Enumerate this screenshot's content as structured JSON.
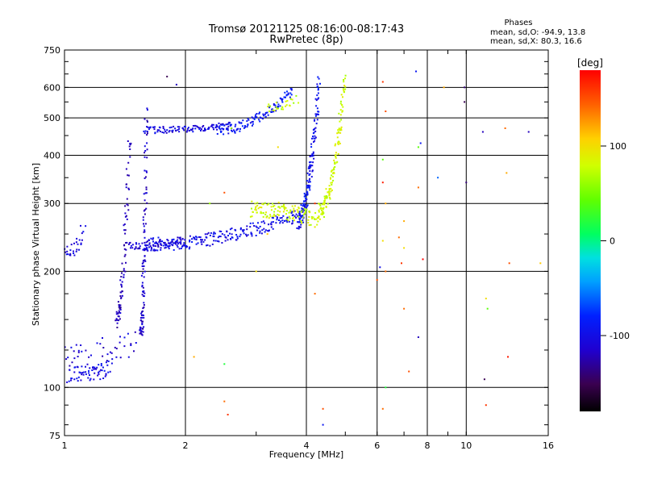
{
  "chart_data": {
    "type": "scatter",
    "title": "Tromsø 20121125 08:16:00-08:17:43",
    "subtitle": "RwPretec (8p)",
    "xlabel": "Frequency [MHz]",
    "ylabel": "Stationary phase Virtual Height [km]",
    "x_scale": "log",
    "y_scale": "log",
    "xlim": [
      1,
      16
    ],
    "ylim": [
      75,
      750
    ],
    "x_ticks": [
      1,
      2,
      4,
      6,
      8,
      10,
      16
    ],
    "x_ticklabels": [
      "1",
      "2",
      "4",
      "6",
      "8",
      "10",
      "16"
    ],
    "y_ticks": [
      75,
      100,
      200,
      300,
      400,
      500,
      600,
      750
    ],
    "y_ticklabels": [
      "75",
      "100",
      "200",
      "300",
      "400",
      "500",
      "600",
      "750"
    ],
    "grid": true,
    "phases": {
      "heading": "Phases",
      "o_line": "mean, sd,O: -94.9, 13.8",
      "x_line": "mean, sd,X:  80.3, 16.6"
    },
    "colorbar": {
      "label": "[deg]",
      "range": [
        -180,
        180
      ],
      "ticks": [
        100,
        0,
        -100
      ],
      "ticklabels": [
        "100",
        "0",
        "-100"
      ]
    },
    "series": [
      {
        "id": "lowE",
        "traces": [
          {
            "f0": 1.02,
            "f1": 1.3,
            "h0": 108,
            "h1": 112,
            "n": 60,
            "spread": 0.05,
            "phase": -100
          },
          {
            "f0": 1.0,
            "f1": 1.5,
            "h0": 118,
            "h1": 135,
            "n": 50,
            "spread": 0.1,
            "phase": -110
          },
          {
            "f0": 1.0,
            "f1": 1.12,
            "h0": 220,
            "h1": 260,
            "n": 30,
            "spread": 0.05,
            "phase": -105
          }
        ]
      },
      {
        "id": "F1",
        "traces": [
          {
            "f0": 1.55,
            "f1": 1.6,
            "h0": 140,
            "h1": 520,
            "n": 110,
            "spread": 0.05,
            "phase": -115
          },
          {
            "f0": 1.35,
            "f1": 1.45,
            "h0": 150,
            "h1": 450,
            "n": 90,
            "spread": 0.05,
            "phase": -120
          },
          {
            "f0": 1.58,
            "f1": 2.6,
            "h0": 465,
            "h1": 478,
            "n": 110,
            "spread": 0.02,
            "phase": -105
          },
          {
            "f0": 1.45,
            "f1": 2.0,
            "h0": 232,
            "h1": 240,
            "n": 80,
            "spread": 0.03,
            "phase": -110
          }
        ]
      },
      {
        "id": "Fo",
        "traces": [
          {
            "f0": 1.6,
            "f1": 3.8,
            "h0": 235,
            "h1": 280,
            "n": 220,
            "spread": 0.04,
            "phase": -100
          },
          {
            "f0": 2.4,
            "f1": 3.7,
            "h0": 465,
            "h1": 590,
            "n": 120,
            "spread": 0.03,
            "phase": -90
          },
          {
            "f0": 3.8,
            "f1": 4.3,
            "h0": 270,
            "h1": 620,
            "n": 160,
            "spread": 0.05,
            "phase": -95
          }
        ]
      },
      {
        "id": "Fx",
        "traces": [
          {
            "f0": 2.9,
            "f1": 4.3,
            "h0": 290,
            "h1": 272,
            "n": 120,
            "spread": 0.05,
            "phase": 80
          },
          {
            "f0": 4.3,
            "f1": 5.0,
            "h0": 285,
            "h1": 640,
            "n": 140,
            "spread": 0.05,
            "phase": 80
          },
          {
            "f0": 3.2,
            "f1": 3.8,
            "h0": 530,
            "h1": 560,
            "n": 25,
            "spread": 0.03,
            "phase": 75
          }
        ]
      },
      {
        "id": "noise",
        "points": [
          [
            1.8,
            640,
            -150
          ],
          [
            1.9,
            610,
            -120
          ],
          [
            2.5,
            320,
            150
          ],
          [
            2.3,
            300,
            60
          ],
          [
            2.1,
            120,
            120
          ],
          [
            2.5,
            115,
            20
          ],
          [
            2.5,
            92,
            140
          ],
          [
            2.55,
            85,
            160
          ],
          [
            4.4,
            88,
            150
          ],
          [
            4.4,
            80,
            -90
          ],
          [
            6.2,
            620,
            160
          ],
          [
            6.3,
            520,
            150
          ],
          [
            6.2,
            390,
            40
          ],
          [
            6.2,
            340,
            170
          ],
          [
            6.3,
            300,
            120
          ],
          [
            6.2,
            240,
            100
          ],
          [
            6.1,
            205,
            -100
          ],
          [
            6.3,
            200,
            140
          ],
          [
            6.0,
            190,
            150
          ],
          [
            6.3,
            100,
            20
          ],
          [
            6.2,
            88,
            140
          ],
          [
            7.0,
            270,
            120
          ],
          [
            6.8,
            245,
            140
          ],
          [
            7.0,
            230,
            100
          ],
          [
            6.9,
            210,
            160
          ],
          [
            7.0,
            160,
            140
          ],
          [
            7.2,
            110,
            150
          ],
          [
            7.5,
            660,
            -90
          ],
          [
            7.6,
            420,
            40
          ],
          [
            7.7,
            430,
            -90
          ],
          [
            7.6,
            330,
            140
          ],
          [
            7.8,
            215,
            180
          ],
          [
            7.6,
            135,
            -120
          ],
          [
            8.5,
            350,
            -60
          ],
          [
            8.8,
            600,
            120
          ],
          [
            9.9,
            600,
            -140
          ],
          [
            9.9,
            550,
            -150
          ],
          [
            10.0,
            340,
            -140
          ],
          [
            11.0,
            460,
            -120
          ],
          [
            11.2,
            170,
            100
          ],
          [
            11.3,
            160,
            40
          ],
          [
            11.1,
            105,
            -150
          ],
          [
            11.2,
            90,
            160
          ],
          [
            12.5,
            470,
            140
          ],
          [
            12.6,
            360,
            120
          ],
          [
            12.8,
            210,
            150
          ],
          [
            12.7,
            120,
            170
          ],
          [
            14.3,
            460,
            -120
          ],
          [
            15.3,
            210,
            110
          ],
          [
            3.2,
            250,
            110
          ],
          [
            3.4,
            420,
            100
          ],
          [
            3.0,
            200,
            100
          ],
          [
            4.2,
            175,
            140
          ],
          [
            4.2,
            300,
            160
          ],
          [
            2.6,
            470,
            60
          ]
        ]
      }
    ]
  }
}
